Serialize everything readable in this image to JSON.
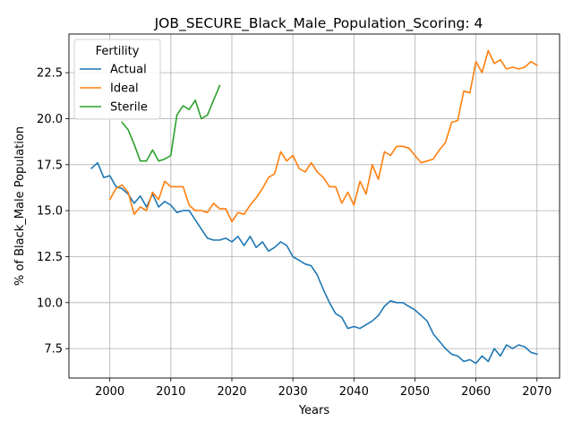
{
  "chart_data": {
    "type": "line",
    "title": "JOB_SECURE_Black_Male_Population_Scoring: 4",
    "xlabel": "Years",
    "ylabel": "% of Black_Male Population",
    "xlim": [
      1993.3,
      2073.7
    ],
    "ylim": [
      5.9,
      24.6
    ],
    "xticks": [
      2000,
      2010,
      2020,
      2030,
      2040,
      2050,
      2060,
      2070
    ],
    "yticks": [
      7.5,
      10.0,
      12.5,
      15.0,
      17.5,
      20.0,
      22.5
    ],
    "xtick_labels": [
      "2000",
      "2010",
      "2020",
      "2030",
      "2040",
      "2050",
      "2060",
      "2070"
    ],
    "ytick_labels": [
      "7.5",
      "10.0",
      "12.5",
      "15.0",
      "17.5",
      "20.0",
      "22.5"
    ],
    "grid": true,
    "legend": {
      "title": "Fertility",
      "placement": "top-left"
    },
    "series": [
      {
        "name": "Actual",
        "color": "#1f77b4",
        "x": [
          1997,
          1998,
          1999,
          2000,
          2001,
          2002,
          2003,
          2004,
          2005,
          2006,
          2007,
          2008,
          2009,
          2010,
          2011,
          2012,
          2013,
          2014,
          2015,
          2016,
          2017,
          2018,
          2019,
          2020,
          2021,
          2022,
          2023,
          2024,
          2025,
          2026,
          2027,
          2028,
          2029,
          2030,
          2031,
          2032,
          2033,
          2034,
          2035,
          2036,
          2037,
          2038,
          2039,
          2040,
          2041,
          2042,
          2043,
          2044,
          2045,
          2046,
          2047,
          2048,
          2049,
          2050,
          2051,
          2052,
          2053,
          2054,
          2055,
          2056,
          2057,
          2058,
          2059,
          2060,
          2061,
          2062,
          2063,
          2064,
          2065,
          2066,
          2067,
          2068,
          2069,
          2070
        ],
        "values": [
          17.3,
          17.6,
          16.8,
          16.9,
          16.3,
          16.2,
          15.9,
          15.4,
          15.8,
          15.2,
          15.9,
          15.2,
          15.5,
          15.3,
          14.9,
          15.0,
          15.0,
          14.5,
          14.0,
          13.5,
          13.4,
          13.4,
          13.5,
          13.3,
          13.6,
          13.1,
          13.6,
          13.0,
          13.3,
          12.8,
          13.0,
          13.3,
          13.1,
          12.5,
          12.3,
          12.1,
          12.0,
          11.5,
          10.7,
          10.0,
          9.4,
          9.2,
          8.6,
          8.7,
          8.6,
          8.8,
          9.0,
          9.3,
          9.8,
          10.1,
          10.0,
          10.0,
          9.8,
          9.6,
          9.3,
          9.0,
          8.3,
          7.9,
          7.5,
          7.2,
          7.1,
          6.8,
          6.9,
          6.7,
          7.1,
          6.8,
          7.5,
          7.1,
          7.7,
          7.5,
          7.7,
          7.6,
          7.3,
          7.2
        ]
      },
      {
        "name": "Ideal",
        "color": "#ff7f0e",
        "x": [
          2000,
          2001,
          2002,
          2003,
          2004,
          2005,
          2006,
          2007,
          2008,
          2009,
          2010,
          2011,
          2012,
          2013,
          2014,
          2015,
          2016,
          2017,
          2018,
          2019,
          2020,
          2021,
          2022,
          2023,
          2024,
          2025,
          2026,
          2027,
          2028,
          2029,
          2030,
          2031,
          2032,
          2033,
          2034,
          2035,
          2036,
          2037,
          2038,
          2039,
          2040,
          2041,
          2042,
          2043,
          2044,
          2045,
          2046,
          2047,
          2048,
          2049,
          2050,
          2051,
          2052,
          2053,
          2054,
          2055,
          2056,
          2057,
          2058,
          2059,
          2060,
          2061,
          2062,
          2063,
          2064,
          2065,
          2066,
          2067,
          2068,
          2069,
          2070
        ],
        "values": [
          15.6,
          16.2,
          16.4,
          16.0,
          14.8,
          15.2,
          15.0,
          16.0,
          15.6,
          16.6,
          16.3,
          16.3,
          16.3,
          15.3,
          15.0,
          15.0,
          14.9,
          15.4,
          15.1,
          15.1,
          14.4,
          14.9,
          14.8,
          15.3,
          15.7,
          16.2,
          16.8,
          17.0,
          18.2,
          17.7,
          18.0,
          17.3,
          17.1,
          17.6,
          17.1,
          16.8,
          16.3,
          16.3,
          15.4,
          16.0,
          15.3,
          16.6,
          15.9,
          17.5,
          16.7,
          18.2,
          18.0,
          18.5,
          18.5,
          18.4,
          18.0,
          17.6,
          17.7,
          17.8,
          18.3,
          18.7,
          19.8,
          19.9,
          21.5,
          21.4,
          23.1,
          22.5,
          23.7,
          23.0,
          23.2,
          22.7,
          22.8,
          22.7,
          22.8,
          23.1,
          22.9
        ]
      },
      {
        "name": "Sterile",
        "color": "#2ca02c",
        "x": [
          2002,
          2003,
          2004,
          2005,
          2006,
          2007,
          2008,
          2009,
          2010,
          2011,
          2012,
          2013,
          2014,
          2015,
          2016,
          2017,
          2018
        ],
        "values": [
          19.8,
          19.4,
          18.6,
          17.7,
          17.7,
          18.3,
          17.7,
          17.8,
          18.0,
          20.2,
          20.7,
          20.5,
          21.0,
          20.0,
          20.2,
          21.0,
          21.8
        ]
      }
    ]
  }
}
